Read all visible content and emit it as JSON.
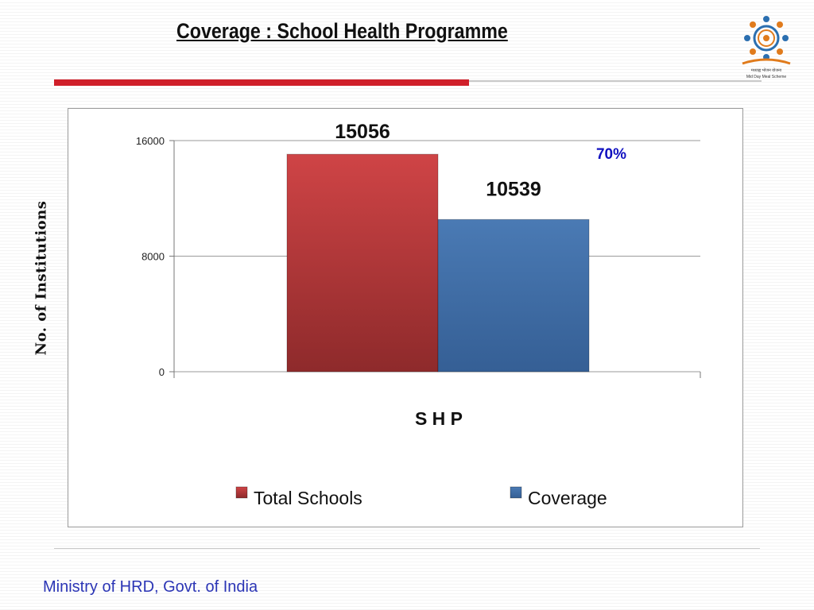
{
  "slide": {
    "title": "Coverage : School Health Programme",
    "footer": "Ministry of HRD, Govt. of India",
    "logo_caption": "Mid Day Meal Scheme",
    "logo_caption_hindi": "मध्याह्न भोजन योजना"
  },
  "colors": {
    "accent_red": "#d0202a",
    "series_red": "#c0393b",
    "series_blue": "#3f6ea8",
    "percent_text": "#1010c0",
    "footer_text": "#2b35b5"
  },
  "chart_data": {
    "type": "bar",
    "categories": [
      "S H P"
    ],
    "series": [
      {
        "name": "Total Schools",
        "values": [
          15056
        ],
        "color": "#c0393b"
      },
      {
        "name": "Coverage",
        "values": [
          10539
        ],
        "color": "#3f6ea8"
      }
    ],
    "data_labels": [
      "15056",
      "10539"
    ],
    "annotation": "70%",
    "xlabel": "S H P",
    "ylabel": "No. of Institutions",
    "ylim": [
      0,
      16000
    ],
    "yticks": [
      0,
      8000,
      16000
    ],
    "grid": true,
    "legend_position": "bottom"
  }
}
